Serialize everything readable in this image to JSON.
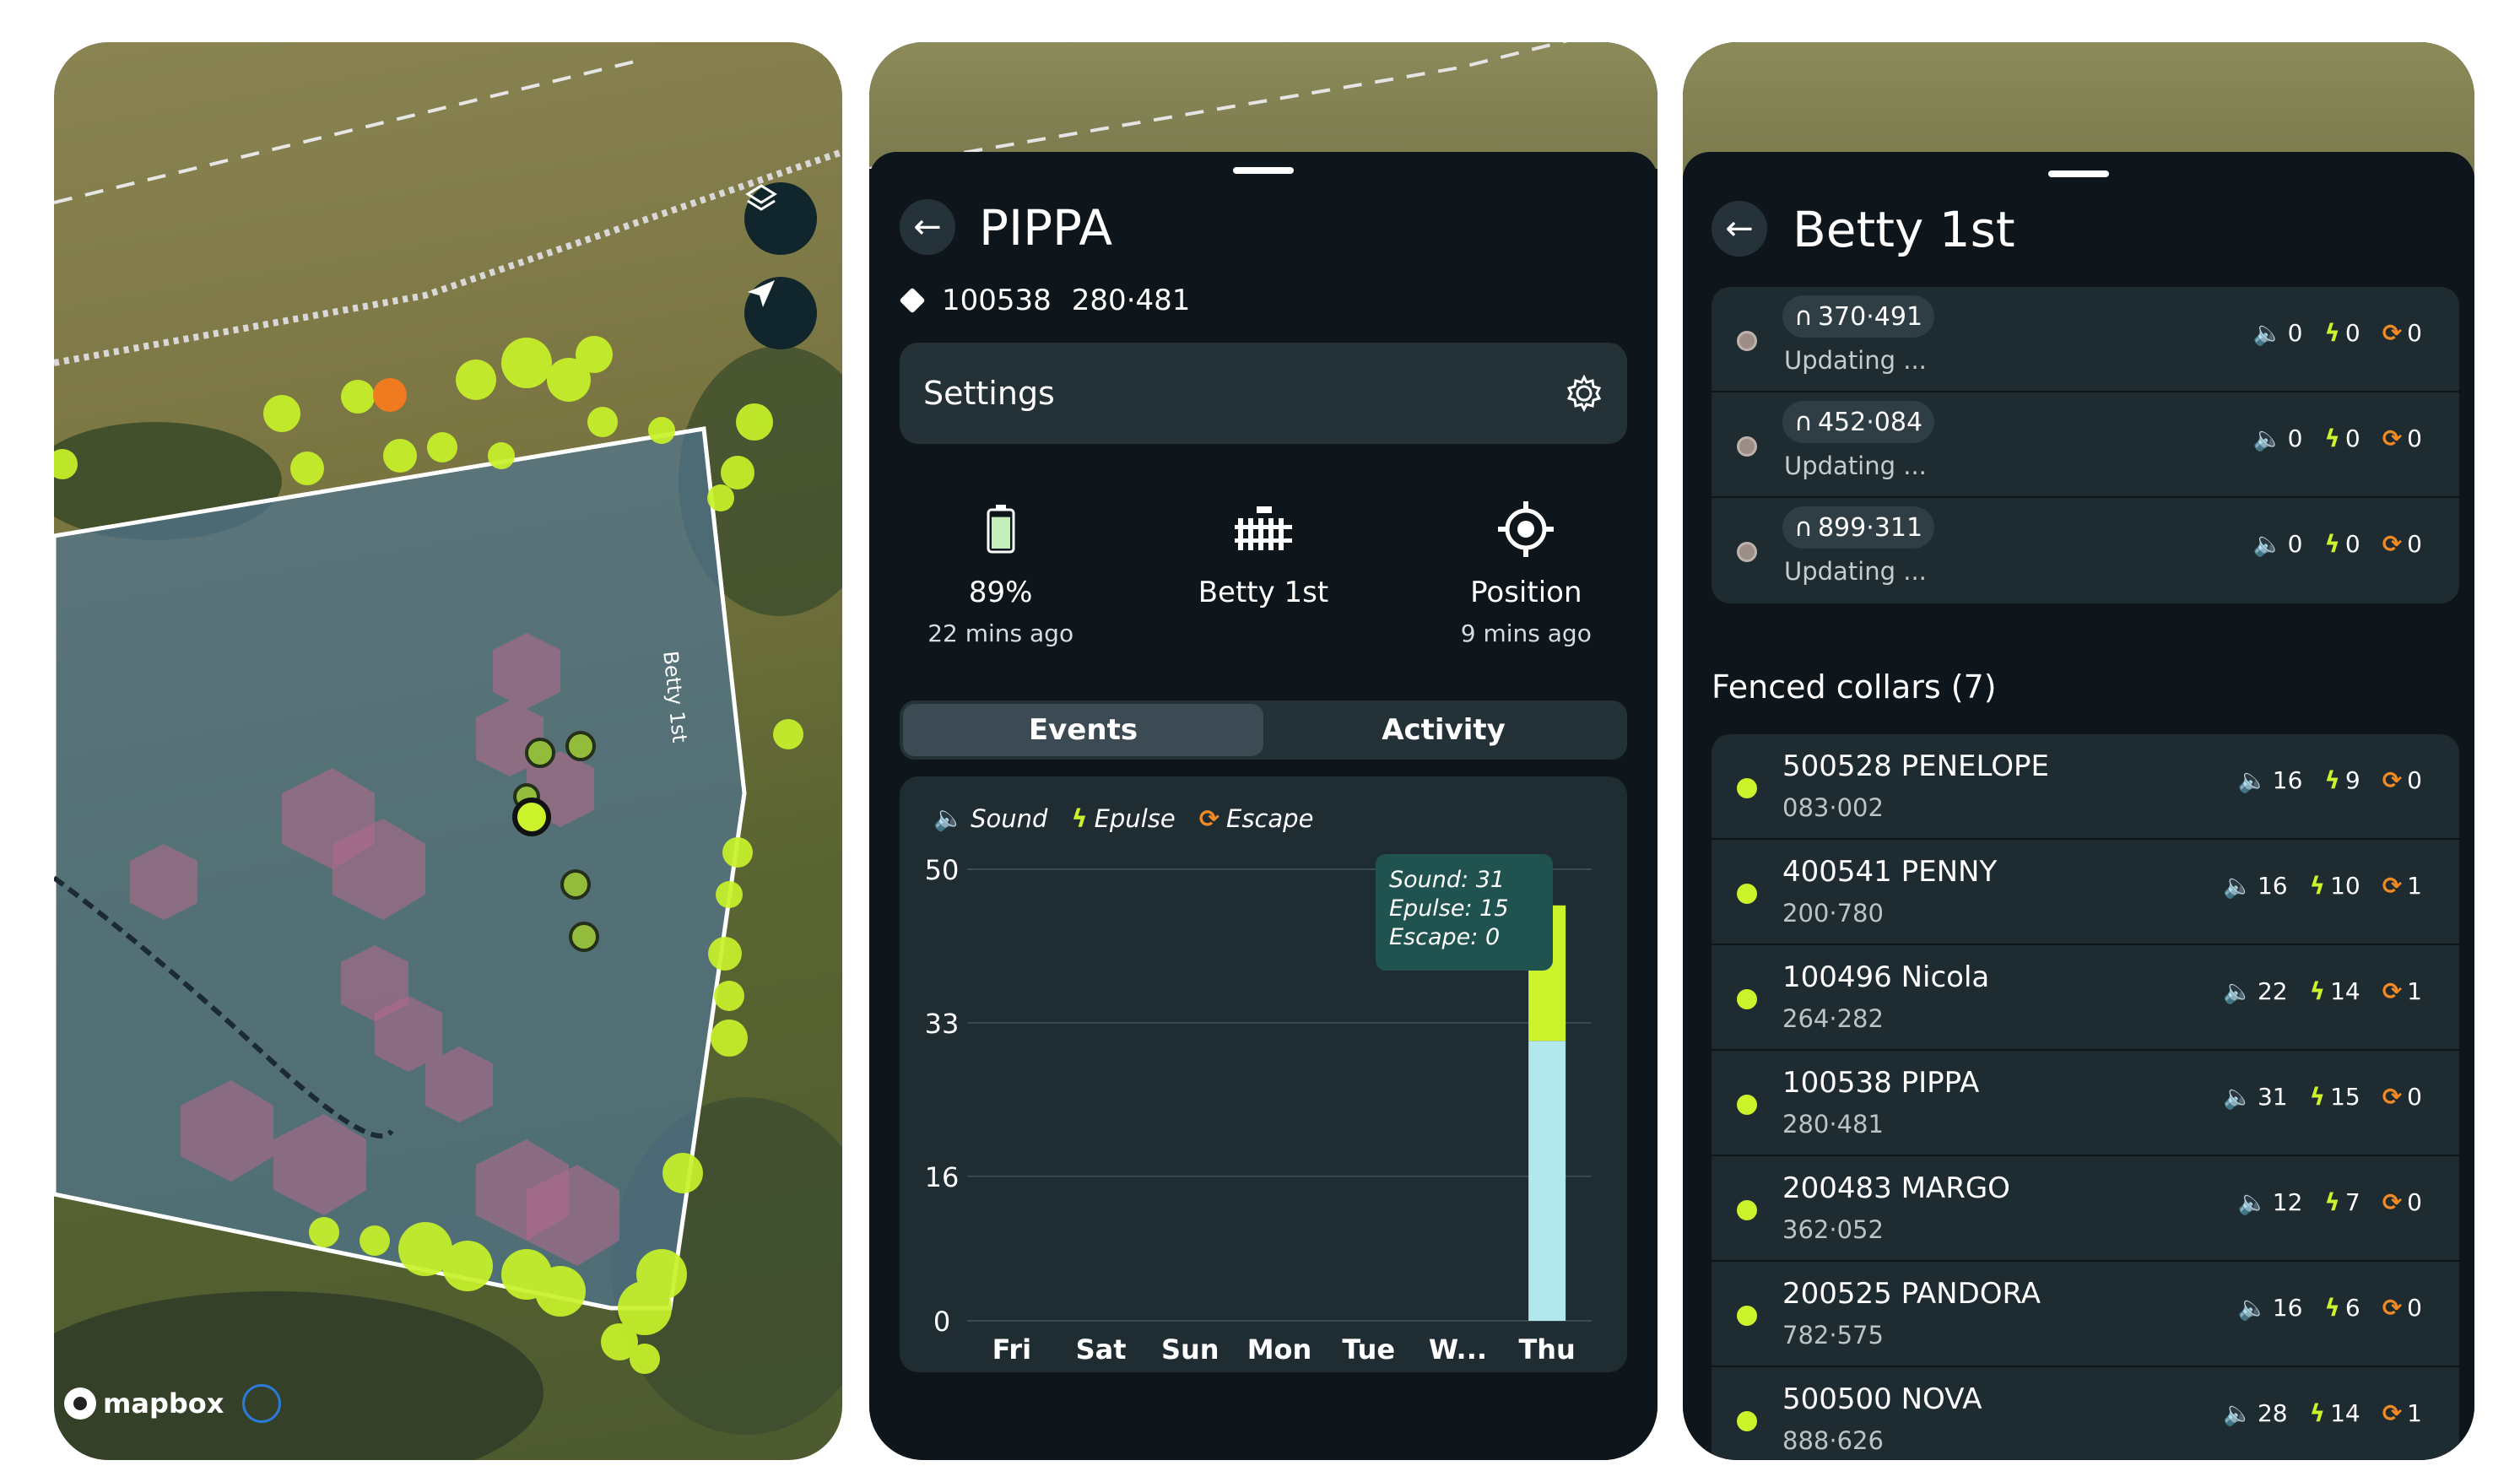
{
  "map": {
    "attribution": "mapbox",
    "field_label": "Betty 1st"
  },
  "detail": {
    "title": "PIPPA",
    "tag_id": "100538",
    "tag_code": "280·481",
    "settings_label": "Settings",
    "battery": {
      "value": "89%",
      "sub": "22 mins ago",
      "level": 0.89
    },
    "fence": {
      "value": "Betty 1st"
    },
    "position": {
      "value": "Position",
      "sub": "9 mins ago"
    },
    "tabs": [
      {
        "label": "Events",
        "active": true
      },
      {
        "label": "Activity",
        "active": false
      }
    ],
    "legend": {
      "sound": "Sound",
      "epulse": "Epulse",
      "escape": "Escape"
    },
    "tooltip": {
      "sound": "Sound: 31",
      "epulse": "Epulse: 15",
      "escape": "Escape: 0"
    }
  },
  "chart_data": {
    "type": "bar",
    "categories": [
      "Fri",
      "Sat",
      "Sun",
      "Mon",
      "Tue",
      "W...",
      "Thu"
    ],
    "series": [
      {
        "name": "Sound",
        "values": [
          0,
          0,
          0,
          0,
          0,
          0,
          31
        ],
        "color": "#b2e8ec"
      },
      {
        "name": "Epulse",
        "values": [
          0,
          0,
          0,
          0,
          0,
          0,
          15
        ],
        "color": "#ccf22c"
      },
      {
        "name": "Escape",
        "values": [
          0,
          0,
          0,
          0,
          0,
          0,
          0
        ],
        "color": "#f08a24"
      }
    ],
    "stacked": true,
    "yticks": [
      0,
      16,
      33,
      50
    ],
    "ylim": [
      0,
      50
    ],
    "grid": true
  },
  "fence_screen": {
    "title": "Betty 1st",
    "updating_rows": [
      {
        "chip": "370·491",
        "status": "Updating ...",
        "sound": "0",
        "epulse": "0",
        "escape": "0"
      },
      {
        "chip": "452·084",
        "status": "Updating ...",
        "sound": "0",
        "epulse": "0",
        "escape": "0"
      },
      {
        "chip": "899·311",
        "status": "Updating ...",
        "sound": "0",
        "epulse": "0",
        "escape": "0"
      }
    ],
    "section_title": "Fenced collars (7)",
    "collars": [
      {
        "name": "500528 PENELOPE",
        "code": "083·002",
        "sound": "16",
        "epulse": "9",
        "escape": "0"
      },
      {
        "name": "400541 PENNY",
        "code": "200·780",
        "sound": "16",
        "epulse": "10",
        "escape": "1"
      },
      {
        "name": "100496 Nicola",
        "code": "264·282",
        "sound": "22",
        "epulse": "14",
        "escape": "1"
      },
      {
        "name": "100538 PIPPA",
        "code": "280·481",
        "sound": "31",
        "epulse": "15",
        "escape": "0"
      },
      {
        "name": "200483 MARGO",
        "code": "362·052",
        "sound": "12",
        "epulse": "7",
        "escape": "0"
      },
      {
        "name": "200525 PANDORA",
        "code": "782·575",
        "sound": "16",
        "epulse": "6",
        "escape": "0"
      },
      {
        "name": "500500 NOVA",
        "code": "888·626",
        "sound": "28",
        "epulse": "14",
        "escape": "1"
      }
    ]
  },
  "colors": {
    "accent": "#ccf22c",
    "sound": "#b2e8ec",
    "escape": "#f08a24",
    "panel": "#1e2b31"
  }
}
